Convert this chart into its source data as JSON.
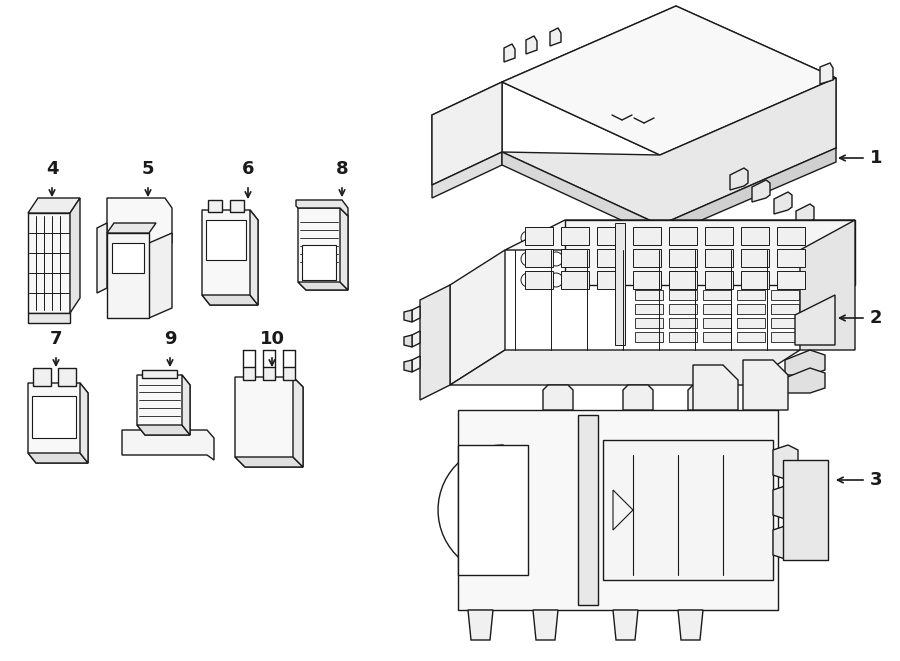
{
  "bg_color": "#ffffff",
  "line_color": "#1a1a1a",
  "lw": 1.0,
  "fig_width": 9.0,
  "fig_height": 6.61,
  "label_fontsize": 13
}
